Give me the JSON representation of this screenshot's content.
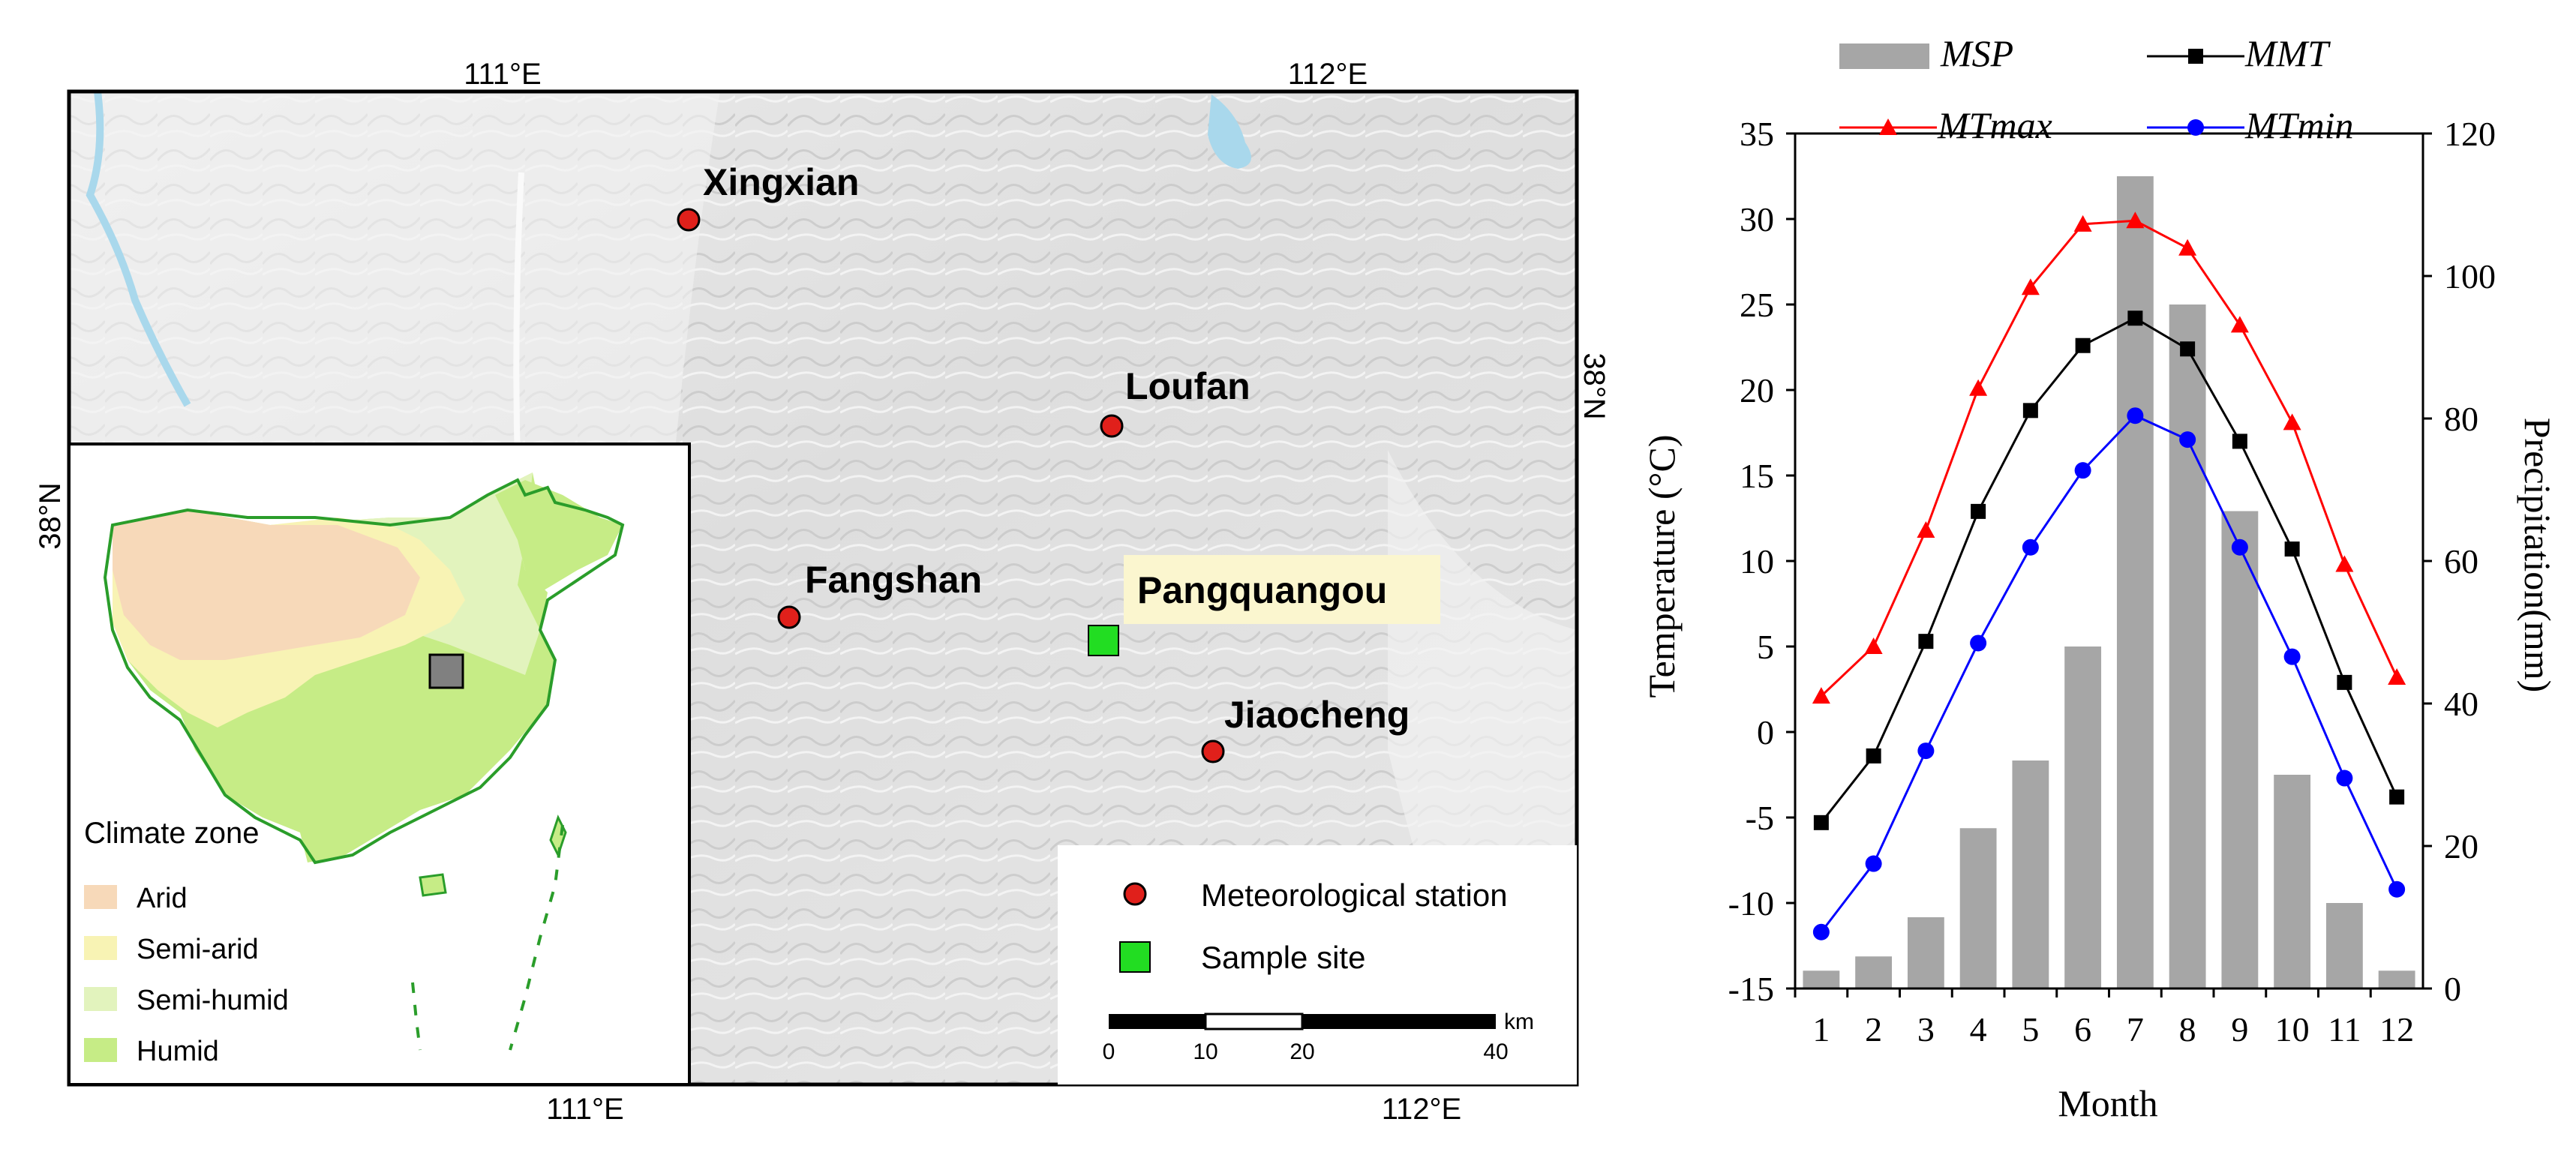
{
  "map": {
    "top_ticks": [
      "111°E",
      "112°E"
    ],
    "bottom_ticks": [
      "111°E",
      "112°E"
    ],
    "left_tick": "38°N",
    "right_tick": "38°N",
    "stations": [
      "Xingxian",
      "Loufan",
      "Fangshan",
      "Jiaocheng"
    ],
    "sample_site": "Pangquangou",
    "legend": {
      "station": "Meteorological station",
      "sample": "Sample site"
    },
    "scale": {
      "unit": "km",
      "ticks": [
        "0",
        "10",
        "20",
        "40"
      ]
    },
    "inset": {
      "title": "Climate zone",
      "zones": [
        {
          "label": "Arid",
          "color": "#f7d9b9"
        },
        {
          "label": "Semi-arid",
          "color": "#f8f3b4"
        },
        {
          "label": "Semi-humid",
          "color": "#e2f3bd"
        },
        {
          "label": "Humid",
          "color": "#c6ec86"
        }
      ],
      "border_color": "#2a9d2a",
      "site_marker_color": "#808080"
    },
    "colors": {
      "station": "#e0201b",
      "sample": "#22dd22",
      "label_box": "#fbf6cf",
      "river": "#a9d8ec"
    }
  },
  "chart_data": {
    "type": "bar",
    "categories": [
      "1",
      "2",
      "3",
      "4",
      "5",
      "6",
      "7",
      "8",
      "9",
      "10",
      "11",
      "12"
    ],
    "xlabel": "Month",
    "ylabel": "Temperature (°C)",
    "y2label": "Precipitation(mm)",
    "ylim": [
      -15,
      35
    ],
    "yticks": [
      "-15",
      "-10",
      "-5",
      "0",
      "5",
      "10",
      "15",
      "20",
      "25",
      "30",
      "35"
    ],
    "y2lim": [
      0,
      120
    ],
    "y2ticks": [
      "0",
      "20",
      "40",
      "60",
      "80",
      "100",
      "120"
    ],
    "legend": [
      "MSP",
      "MMT",
      "MTmax",
      "MTmin"
    ],
    "bar_series": {
      "name": "MSP",
      "axis": "right",
      "color": "#a6a6a6",
      "values": [
        2.5,
        4.5,
        10,
        22.5,
        32,
        48,
        114,
        96,
        67,
        30,
        12,
        2.5
      ]
    },
    "series": [
      {
        "name": "MMT",
        "color": "#000000",
        "marker": "square",
        "values": [
          -5.3,
          -1.4,
          5.3,
          12.9,
          18.8,
          22.6,
          24.2,
          22.4,
          17.0,
          10.7,
          2.9,
          -3.8
        ]
      },
      {
        "name": "MTmax",
        "color": "#ff0000",
        "marker": "triangle",
        "values": [
          2.1,
          5.0,
          11.8,
          20.1,
          26.0,
          29.7,
          29.9,
          28.3,
          23.8,
          18.1,
          9.8,
          3.2
        ]
      },
      {
        "name": "MTmin",
        "color": "#0000ff",
        "marker": "circle",
        "values": [
          -11.7,
          -7.7,
          -1.1,
          5.2,
          10.8,
          15.3,
          18.5,
          17.1,
          10.8,
          4.4,
          -2.7,
          -9.2
        ]
      }
    ]
  }
}
